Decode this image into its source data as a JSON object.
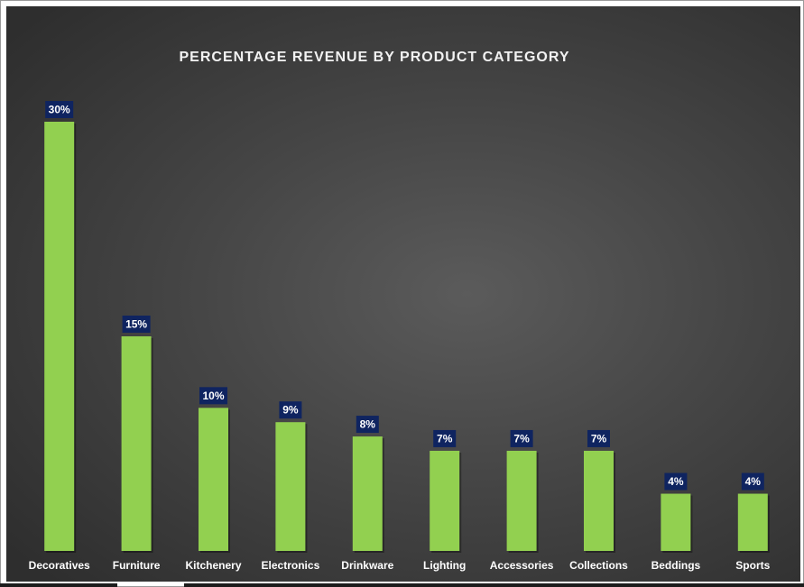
{
  "chart_data": {
    "type": "bar",
    "title": "PERCENTAGE REVENUE BY PRODUCT CATEGORY",
    "categories": [
      "Decoratives",
      "Furniture",
      "Kitchenery",
      "Electronics",
      "Drinkware",
      "Lighting",
      "Accessories",
      "Collections",
      "Beddings",
      "Sports"
    ],
    "values": [
      30,
      15,
      10,
      9,
      8,
      7,
      7,
      7,
      4,
      4
    ],
    "data_labels": [
      "30%",
      "15%",
      "10%",
      "9%",
      "8%",
      "7%",
      "7%",
      "7%",
      "4%",
      "4%"
    ],
    "ylim": [
      0,
      30
    ],
    "grid": false,
    "legend": "none",
    "colors": {
      "bar": "#92d050",
      "label_box": "#0f2460",
      "background": "#474747",
      "text": "#ffffff"
    }
  }
}
